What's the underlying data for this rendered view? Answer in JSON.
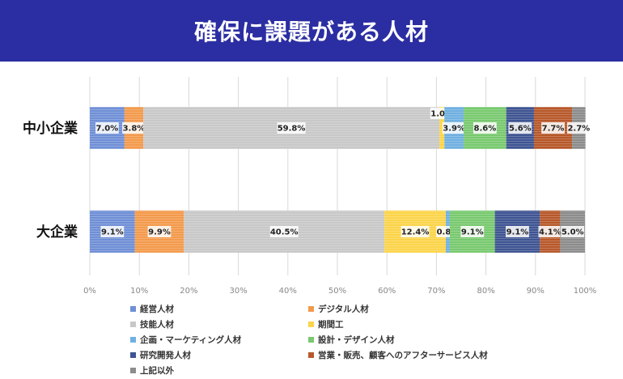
{
  "header": {
    "title": "確保に課題がある人材"
  },
  "chart_data": {
    "type": "bar",
    "orientation": "horizontal",
    "stacked": true,
    "title": "確保に課題がある人材",
    "categories": [
      "中小企業",
      "大企業"
    ],
    "xlim": [
      0,
      100
    ],
    "xticks": [
      "0%",
      "10%",
      "20%",
      "30%",
      "40%",
      "50%",
      "60%",
      "70%",
      "80%",
      "90%",
      "100%"
    ],
    "grid": true,
    "legend_position": "bottom",
    "series": [
      {
        "name": "経営人材",
        "color": "#6f8fd6",
        "values": [
          7.0,
          9.1
        ],
        "labels": [
          "7.0%",
          "9.1%"
        ]
      },
      {
        "name": "デジタル人材",
        "color": "#f39a4c",
        "values": [
          3.8,
          9.9
        ],
        "labels": [
          "3.8%",
          "9.9%"
        ]
      },
      {
        "name": "技能人材",
        "color": "#c8c8c8",
        "values": [
          59.8,
          40.5
        ],
        "labels": [
          "59.8%",
          "40.5%"
        ]
      },
      {
        "name": "期間工",
        "color": "#fbd44a",
        "values": [
          1.0,
          12.4
        ],
        "labels": [
          "1.0%",
          "12.4%"
        ]
      },
      {
        "name": "企画・マーケティング人材",
        "color": "#6fb0e0",
        "values": [
          3.9,
          0.8
        ],
        "labels": [
          "3.9%",
          "0.8%"
        ]
      },
      {
        "name": "設計・デザイン人材",
        "color": "#79c96f",
        "values": [
          8.6,
          9.1
        ],
        "labels": [
          "8.6%",
          "9.1%"
        ]
      },
      {
        "name": "研究開発人材",
        "color": "#3f5592",
        "values": [
          5.6,
          9.1
        ],
        "labels": [
          "5.6%",
          "9.1%"
        ]
      },
      {
        "name": "営業・販売、顧客へのアフターサービス人材",
        "color": "#b7582a",
        "values": [
          7.7,
          4.1
        ],
        "labels": [
          "7.7%",
          "4.1%"
        ]
      },
      {
        "name": "上記以外",
        "color": "#8c8c8c",
        "values": [
          2.7,
          5.0
        ],
        "labels": [
          "2.7%",
          "5.0%"
        ]
      }
    ]
  }
}
